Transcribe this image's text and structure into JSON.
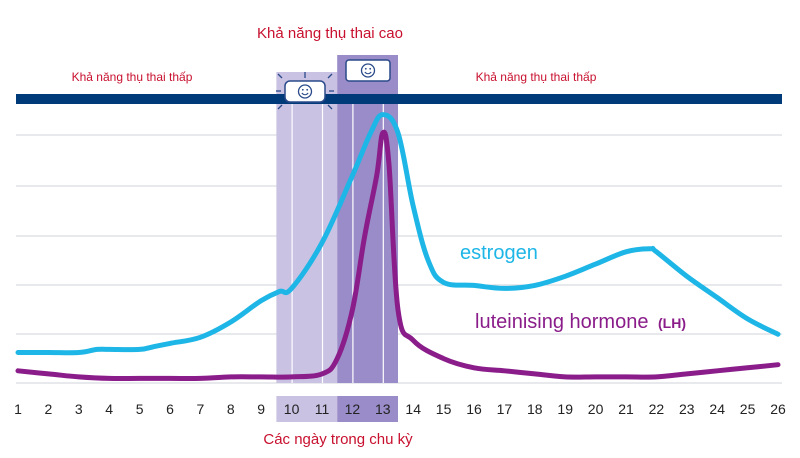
{
  "colors": {
    "title": "#c8102e",
    "band": "#003a78",
    "estrogen": "#1eb6e6",
    "lh": "#8a1d8a",
    "low_shade": "#c9c2e3",
    "high_shade": "#9a8cc8",
    "grid": "#cfd3da"
  },
  "icons": [
    "smiley-sparkle-icon",
    "smiley-icon"
  ],
  "chart_data": {
    "type": "line",
    "title": "Khả năng thụ thai cao",
    "xlabel": "Các ngày trong chu kỳ",
    "ylabel": "",
    "grid": true,
    "x_ticks": [
      1,
      2,
      3,
      4,
      5,
      6,
      7,
      8,
      9,
      10,
      11,
      12,
      13,
      14,
      15,
      16,
      17,
      18,
      19,
      20,
      21,
      22,
      23,
      24,
      25,
      26
    ],
    "xlim": [
      1,
      26
    ],
    "ylim": [
      0,
      100
    ],
    "band_labels": {
      "left": "Khả năng thụ thai thấp",
      "right": "Khả năng thụ thai thấp"
    },
    "fertile_window": {
      "low_days": [
        10,
        11
      ],
      "high_days": [
        12,
        13
      ]
    },
    "series": [
      {
        "name": "estrogen",
        "x": [
          1,
          2,
          3,
          3.6,
          4,
          5,
          5.5,
          6,
          7,
          8,
          9,
          9.6,
          10,
          11,
          12,
          12.6,
          13,
          13.5,
          14,
          14.5,
          15,
          16,
          17,
          18,
          19,
          20,
          21,
          21.8,
          22,
          23,
          24,
          25,
          26
        ],
        "values": [
          10,
          10,
          10,
          11,
          11,
          11,
          12,
          13,
          15,
          20,
          27,
          30,
          31,
          46,
          68,
          82,
          88,
          82,
          58,
          40,
          33,
          32,
          31,
          32,
          35,
          39,
          43,
          44,
          43,
          35,
          28,
          21,
          16
        ]
      },
      {
        "name": "luteinising hormone",
        "name_suffix": "(LH)",
        "x": [
          1,
          2,
          3,
          4,
          5,
          6,
          7,
          8,
          9,
          10,
          11,
          11.5,
          12,
          12.4,
          12.8,
          13,
          13.2,
          13.5,
          14,
          15,
          16,
          17,
          18,
          19,
          20,
          21,
          22,
          23,
          24,
          25,
          26
        ],
        "values": [
          4,
          3,
          2,
          1.5,
          1.5,
          1.5,
          1.5,
          2,
          2,
          2,
          3,
          8,
          24,
          48,
          68,
          82,
          72,
          24,
          14,
          8,
          5,
          4,
          3,
          2,
          2,
          2,
          2,
          3,
          4,
          5,
          6
        ]
      }
    ]
  }
}
